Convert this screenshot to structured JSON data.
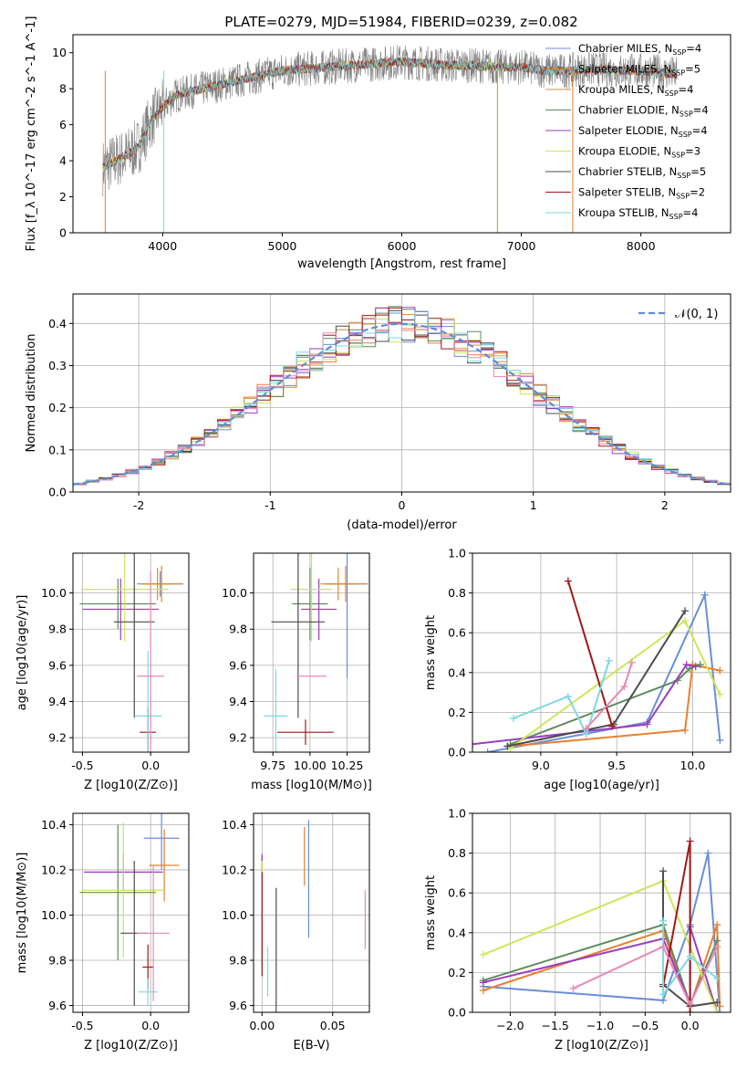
{
  "title": "PLATE=0279, MJD=51984, FIBERID=0239, z=0.082",
  "palette": {
    "series": [
      "#6a8ed8",
      "#e8802e",
      "#d88a2e",
      "#5e8c5e",
      "#9b3dbf",
      "#cde65a",
      "#4d4d4d",
      "#a01818",
      "#7fd8e0"
    ],
    "pink": "#e888b8",
    "spectrum_gray": "#808080",
    "gaussian": "#5b8fd8",
    "grid": "#b0b0b0"
  },
  "chart_data": [
    {
      "id": "spectrum",
      "type": "line",
      "xlabel": "wavelength [Angstrom, rest frame]",
      "ylabel": "Flux [f_λ 10^-17 erg cm^-2 s^-1 A^-1]",
      "xlim": [
        3250,
        8750
      ],
      "ylim": [
        0,
        11
      ],
      "xticks": [
        4000,
        5000,
        6000,
        7000,
        8000
      ],
      "yticks": [
        0,
        2,
        4,
        6,
        8,
        10
      ],
      "grid": false,
      "legend_position": "right",
      "continuum": {
        "x": [
          3500,
          3600,
          3700,
          3800,
          3900,
          4000,
          4100,
          4200,
          4400,
          4600,
          4800,
          5000,
          5200,
          5400,
          5600,
          5800,
          6000,
          6200,
          6400,
          6600,
          6800,
          7000,
          7200,
          7400,
          7600,
          7800,
          8000,
          8200,
          8300
        ],
        "y": [
          3.6,
          4.0,
          4.3,
          4.8,
          6.2,
          7.0,
          7.6,
          7.8,
          8.1,
          8.4,
          8.7,
          9.0,
          9.1,
          9.2,
          9.3,
          9.4,
          9.5,
          9.4,
          9.3,
          9.3,
          9.2,
          9.2,
          9.0,
          9.0,
          9.1,
          9.0,
          9.0,
          8.9,
          8.8
        ]
      },
      "legend": [
        {
          "label": "Chabrier MILES, N",
          "sub": "SSP",
          "eq": "=4",
          "color": "#6a8ed8"
        },
        {
          "label": "Salpeter MILES, N",
          "sub": "SSP",
          "eq": "=5",
          "color": "#e8802e"
        },
        {
          "label": "Kroupa MILES, N",
          "sub": "SSP",
          "eq": "=4",
          "color": "#c8904a"
        },
        {
          "label": "Chabrier ELODIE, N",
          "sub": "SSP",
          "eq": "=4",
          "color": "#5e8c5e"
        },
        {
          "label": "Salpeter ELODIE, N",
          "sub": "SSP",
          "eq": "=4",
          "color": "#9b3dbf"
        },
        {
          "label": "Kroupa ELODIE, N",
          "sub": "SSP",
          "eq": "=3",
          "color": "#cde65a"
        },
        {
          "label": "Chabrier STELIB, N",
          "sub": "SSP",
          "eq": "=5",
          "color": "#4d4d4d"
        },
        {
          "label": "Salpeter STELIB, N",
          "sub": "SSP",
          "eq": "=2",
          "color": "#a01818"
        },
        {
          "label": "Kroupa STELIB, N",
          "sub": "SSP",
          "eq": "=4",
          "color": "#7fd8e0"
        }
      ]
    },
    {
      "id": "residuals",
      "type": "line",
      "xlabel": "(data-model)/error",
      "ylabel": "Normed distribution",
      "xlim": [
        -2.5,
        2.5
      ],
      "ylim": [
        0,
        0.47
      ],
      "xticks": [
        -2,
        -1,
        0,
        1,
        2
      ],
      "yticks": [
        0.0,
        0.1,
        0.2,
        0.3,
        0.4
      ],
      "grid": true,
      "legend_position": "top-right",
      "legend_label": "𝒩(0, 1)",
      "gaussian": {
        "mu": 0,
        "sigma": 1
      }
    },
    {
      "id": "age_vs_Z",
      "type": "scatter",
      "xlabel": "Z [log10(Z/Z⊙)]",
      "ylabel": "age [log10(age/yr)]",
      "xlim": [
        -0.57,
        0.28
      ],
      "ylim": [
        9.12,
        10.22
      ],
      "xticks": [
        -0.5,
        0.0
      ],
      "yticks": [
        9.2,
        9.4,
        9.6,
        9.8,
        10.0
      ],
      "grid": true,
      "points": [
        {
          "x": 0.07,
          "y": 10.05,
          "ex": 0.17,
          "ey": 0.07,
          "color": "#6a8ed8"
        },
        {
          "x": 0.08,
          "y": 10.05,
          "ex": 0.15,
          "ey": 0.1,
          "color": "#e8802e"
        },
        {
          "x": 0.05,
          "y": 10.05,
          "ex": 0.12,
          "ey": 0.09,
          "color": "#d88a2e"
        },
        {
          "x": -0.24,
          "y": 9.94,
          "ex": 0.28,
          "ey": 0.14,
          "color": "#5e8c5e"
        },
        {
          "x": -0.22,
          "y": 9.91,
          "ex": 0.28,
          "ey": 0.17,
          "color": "#9b3dbf"
        },
        {
          "x": -0.19,
          "y": 10.02,
          "ex": 0.32,
          "ey": 0.29,
          "color": "#cde65a"
        },
        {
          "x": -0.12,
          "y": 9.84,
          "ex": 0.15,
          "ey": 0.53,
          "color": "#4d4d4d"
        },
        {
          "x": -0.02,
          "y": 9.23,
          "ex": 0.06,
          "ey": 0.14,
          "color": "#a01818"
        },
        {
          "x": -0.02,
          "y": 9.32,
          "ex": 0.1,
          "ey": 0.36,
          "color": "#7fd8e0"
        },
        {
          "x": 0.0,
          "y": 9.54,
          "ex": 0.1,
          "ey": 0.58,
          "color": "#e888b8"
        }
      ]
    },
    {
      "id": "age_vs_mass",
      "type": "scatter",
      "xlabel": "mass [log10(M/M⊙)]",
      "ylabel": "",
      "xlim": [
        9.62,
        10.4
      ],
      "ylim": [
        9.12,
        10.22
      ],
      "xticks": [
        9.75,
        10.0,
        10.25
      ],
      "xtick_labels": [
        "9.75",
        "10.00",
        "10.25"
      ],
      "yticks": [
        9.2,
        9.4,
        9.6,
        9.8,
        10.0
      ],
      "grid": true,
      "points": [
        {
          "x": 10.25,
          "y": 10.05,
          "ex": 0.14,
          "ey": 0.52,
          "color": "#6a8ed8"
        },
        {
          "x": 10.24,
          "y": 10.05,
          "ex": 0.14,
          "ey": 0.1,
          "color": "#e8802e"
        },
        {
          "x": 10.19,
          "y": 10.05,
          "ex": 0.12,
          "ey": 0.09,
          "color": "#d88a2e"
        },
        {
          "x": 10.0,
          "y": 9.94,
          "ex": 0.12,
          "ey": 0.2,
          "color": "#5e8c5e"
        },
        {
          "x": 10.06,
          "y": 9.91,
          "ex": 0.12,
          "ey": 0.17,
          "color": "#9b3dbf"
        },
        {
          "x": 10.01,
          "y": 10.02,
          "ex": 0.14,
          "ey": 0.29,
          "color": "#cde65a"
        },
        {
          "x": 9.92,
          "y": 9.84,
          "ex": 0.18,
          "ey": 0.53,
          "color": "#4d4d4d"
        },
        {
          "x": 9.97,
          "y": 9.23,
          "ex": 0.19,
          "ey": 0.07,
          "color": "#a01818"
        },
        {
          "x": 9.77,
          "y": 9.32,
          "ex": 0.08,
          "ey": 0.26,
          "color": "#7fd8e0"
        },
        {
          "x": 10.01,
          "y": 9.54,
          "ex": 0.1,
          "ey": 0.0,
          "color": "#e888b8"
        }
      ]
    },
    {
      "id": "massweight_vs_age",
      "type": "line",
      "xlabel": "age [log10(age/yr)]",
      "ylabel": "mass weight",
      "xlim": [
        8.55,
        10.25
      ],
      "ylim": [
        0,
        1.0
      ],
      "xticks": [
        9.0,
        9.5,
        10.0
      ],
      "yticks": [
        0.0,
        0.2,
        0.4,
        0.6,
        0.8,
        1.0
      ],
      "grid": true,
      "series": [
        {
          "color": "#6a8ed8",
          "x": [
            8.65,
            9.7,
            10.08,
            10.18
          ],
          "y": [
            0.0,
            0.15,
            0.79,
            0.06
          ]
        },
        {
          "color": "#e8802e",
          "x": [
            8.8,
            9.95,
            10.0,
            10.18
          ],
          "y": [
            0.03,
            0.11,
            0.44,
            0.41
          ]
        },
        {
          "color": "#5e8c5e",
          "x": [
            8.8,
            9.9,
            9.98,
            10.05
          ],
          "y": [
            0.04,
            0.36,
            0.42,
            0.44
          ]
        },
        {
          "color": "#9b3dbf",
          "x": [
            8.55,
            9.7,
            9.96,
            10.02
          ],
          "y": [
            0.04,
            0.14,
            0.44,
            0.43
          ]
        },
        {
          "color": "#cde65a",
          "x": [
            8.8,
            9.95,
            10.18
          ],
          "y": [
            0.02,
            0.66,
            0.29
          ]
        },
        {
          "color": "#4d4d4d",
          "x": [
            8.78,
            9.48,
            9.95
          ],
          "y": [
            0.03,
            0.14,
            0.71
          ]
        },
        {
          "color": "#a01818",
          "x": [
            9.18,
            9.47
          ],
          "y": [
            0.86,
            0.13
          ]
        },
        {
          "color": "#7fd8e0",
          "x": [
            8.82,
            9.18,
            9.3,
            9.45
          ],
          "y": [
            0.17,
            0.28,
            0.09,
            0.46
          ]
        },
        {
          "color": "#e888b8",
          "x": [
            9.3,
            9.55,
            9.6
          ],
          "y": [
            0.12,
            0.33,
            0.45
          ]
        }
      ]
    },
    {
      "id": "mass_vs_Z",
      "type": "scatter",
      "xlabel": "Z [log10(Z/Z⊙)]",
      "ylabel": "mass [log10(M/M⊙)]",
      "xlim": [
        -0.57,
        0.28
      ],
      "ylim": [
        9.57,
        10.45
      ],
      "xticks": [
        -0.5,
        0.0
      ],
      "yticks": [
        9.6,
        9.8,
        10.0,
        10.2,
        10.4
      ],
      "grid": true,
      "points": [
        {
          "x": 0.08,
          "y": 10.34,
          "ex": 0.13,
          "ey": 0.14,
          "color": "#6a8ed8"
        },
        {
          "x": 0.1,
          "y": 10.22,
          "ex": 0.11,
          "ey": 0.16,
          "color": "#e8802e"
        },
        {
          "x": -0.24,
          "y": 10.1,
          "ex": 0.28,
          "ey": 0.3,
          "color": "#5e8c5e"
        },
        {
          "x": -0.2,
          "y": 10.19,
          "ex": 0.29,
          "ey": 0.08,
          "color": "#9b3dbf"
        },
        {
          "x": -0.2,
          "y": 10.11,
          "ex": 0.3,
          "ey": 0.3,
          "color": "#cde65a"
        },
        {
          "x": -0.12,
          "y": 9.92,
          "ex": 0.1,
          "ey": 0.32,
          "color": "#4d4d4d"
        },
        {
          "x": -0.02,
          "y": 9.77,
          "ex": 0.04,
          "ey": 0.1,
          "color": "#a01818"
        },
        {
          "x": -0.02,
          "y": 9.66,
          "ex": 0.07,
          "ey": 0.06,
          "color": "#7fd8e0"
        },
        {
          "x": 0.02,
          "y": 9.92,
          "ex": 0.12,
          "ey": 0.3,
          "color": "#e888b8"
        }
      ]
    },
    {
      "id": "mass_vs_ebv",
      "type": "scatter",
      "xlabel": "E(B-V)",
      "ylabel": "",
      "xlim": [
        -0.006,
        0.076
      ],
      "ylim": [
        9.57,
        10.45
      ],
      "xticks": [
        0.0,
        0.05
      ],
      "xtick_labels": [
        "0.00",
        "0.05"
      ],
      "yticks": [
        9.6,
        9.8,
        10.0,
        10.2,
        10.4
      ],
      "grid": true,
      "points": [
        {
          "x": 0.033,
          "y": 10.16,
          "ey": 0.26,
          "color": "#6a8ed8"
        },
        {
          "x": 0.03,
          "y": 10.26,
          "ey": 0.13,
          "color": "#e8802e"
        },
        {
          "x": 0.0,
          "y": 10.02,
          "ey": 0.24,
          "color": "#5e8c5e"
        },
        {
          "x": 0.0,
          "y": 10.05,
          "ey": 0.22,
          "color": "#9b3dbf"
        },
        {
          "x": 0.0,
          "y": 9.99,
          "ey": 0.25,
          "color": "#cde65a"
        },
        {
          "x": 0.01,
          "y": 9.8,
          "ey": 0.32,
          "color": "#4d4d4d"
        },
        {
          "x": 0.0,
          "y": 9.96,
          "ey": 0.23,
          "color": "#a01818"
        },
        {
          "x": 0.004,
          "y": 9.75,
          "ey": 0.11,
          "color": "#7fd8e0"
        },
        {
          "x": 0.073,
          "y": 9.98,
          "ey": 0.13,
          "color": "#e888b8"
        }
      ]
    },
    {
      "id": "massweight_vs_Z",
      "type": "line",
      "xlabel": "Z [log10(Z/Z⊙)]",
      "ylabel": "mass weight",
      "xlim": [
        -2.42,
        0.45
      ],
      "ylim": [
        0,
        1.0
      ],
      "xticks": [
        -2.0,
        -1.5,
        -1.0,
        -0.5,
        0.0
      ],
      "yticks": [
        0.0,
        0.2,
        0.4,
        0.6,
        0.8,
        1.0
      ],
      "grid": true,
      "series": [
        {
          "color": "#6a8ed8",
          "x": [
            -2.3,
            -0.3,
            0.0,
            0.2,
            0.33
          ],
          "y": [
            0.13,
            0.06,
            0.44,
            0.8,
            0.0
          ]
        },
        {
          "color": "#e8802e",
          "x": [
            -2.3,
            -0.3,
            0.0,
            0.3,
            0.33
          ],
          "y": [
            0.11,
            0.41,
            0.03,
            0.44,
            0.03
          ]
        },
        {
          "color": "#5e8c5e",
          "x": [
            -2.3,
            -0.3,
            0.0,
            0.3
          ],
          "y": [
            0.16,
            0.44,
            0.04,
            0.36
          ]
        },
        {
          "color": "#9b3dbf",
          "x": [
            -2.3,
            -0.3,
            0.0,
            0.0,
            0.3
          ],
          "y": [
            0.15,
            0.37,
            0.04,
            0.43,
            0.0
          ]
        },
        {
          "color": "#cde65a",
          "x": [
            -2.3,
            -0.3,
            0.3
          ],
          "y": [
            0.29,
            0.66,
            0.0
          ]
        },
        {
          "color": "#4d4d4d",
          "x": [
            -0.3,
            -0.3,
            0.0,
            0.3
          ],
          "y": [
            0.71,
            0.14,
            0.03,
            0.05
          ]
        },
        {
          "color": "#a01818",
          "x": [
            -0.3,
            0.0,
            0.0
          ],
          "y": [
            0.13,
            0.86,
            0.0
          ]
        },
        {
          "color": "#7fd8e0",
          "x": [
            -0.3,
            -0.3,
            0.0,
            0.3
          ],
          "y": [
            0.46,
            0.09,
            0.28,
            0.17
          ]
        },
        {
          "color": "#e888b8",
          "x": [
            -1.3,
            -0.3,
            0.0,
            0.3
          ],
          "y": [
            0.12,
            0.33,
            0.04,
            0.33
          ]
        }
      ]
    }
  ]
}
